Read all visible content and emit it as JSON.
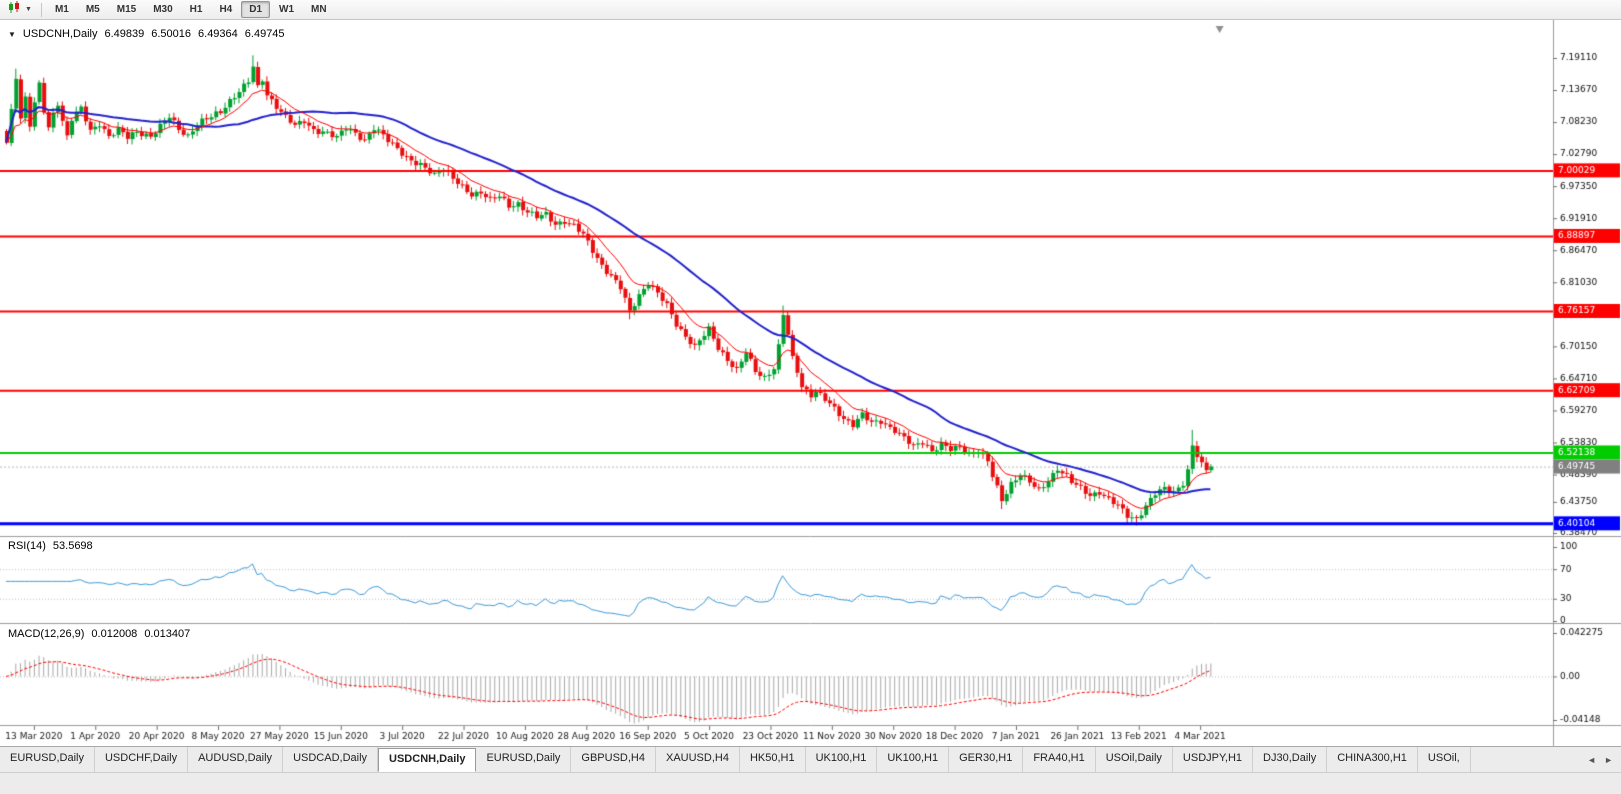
{
  "toolbar": {
    "timeframes": [
      "M1",
      "M5",
      "M15",
      "M30",
      "H1",
      "H4",
      "D1",
      "W1",
      "MN"
    ],
    "active_timeframe": "D1"
  },
  "chart": {
    "title": "USDCNH,Daily",
    "open": "6.49839",
    "high": "6.50016",
    "low": "6.49364",
    "close": "6.49745"
  },
  "rsi": {
    "name": "RSI(14)",
    "value": "53.5698"
  },
  "macd": {
    "name": "MACD(12,26,9)",
    "value_main": "0.012008",
    "value_signal": "0.013407"
  },
  "colors": {
    "bull": "#00A12F",
    "bear": "#E80E0E",
    "ma_fast": "#FF0000",
    "ma_slow": "#2222CC",
    "rsi_line": "#3E9BD8",
    "macd_hist": "#A9A9A9",
    "macd_signal": "#FF0000",
    "price_box": "#808080",
    "axis_text": "#111111",
    "level_dotted": "#C0C0C0"
  },
  "chart_data": {
    "type": "candlestick",
    "symbol": "USDCNH",
    "period": "Daily",
    "bars": 260,
    "last_ohlc": [
      6.49839,
      6.50016,
      6.49364,
      6.49745
    ],
    "price_axis_ticks": [
      "7.19110",
      "7.13670",
      "7.08230",
      "7.02790",
      "6.97350",
      "6.91910",
      "6.86470",
      "6.81030",
      "6.75590",
      "6.70150",
      "6.64710",
      "6.59270",
      "6.53830",
      "6.48390",
      "6.43750",
      "6.38470"
    ],
    "x_labels": [
      "13 Mar 2020",
      "1 Apr 2020",
      "20 Apr 2020",
      "8 May 2020",
      "27 May 2020",
      "15 Jun 2020",
      "3 Jul 2020",
      "22 Jul 2020",
      "10 Aug 2020",
      "28 Aug 2020",
      "16 Sep 2020",
      "5 Oct 2020",
      "23 Oct 2020",
      "11 Nov 2020",
      "30 Nov 2020",
      "18 Dec 2020",
      "7 Jan 2021",
      "26 Jan 2021",
      "13 Feb 2021",
      "4 Mar 2021"
    ],
    "hlines": [
      {
        "price": 7.00029,
        "label": "7.00029",
        "color": "#FF0000",
        "width": 2
      },
      {
        "price": 6.88897,
        "label": "6.88897",
        "color": "#FF0000",
        "width": 2
      },
      {
        "price": 6.76157,
        "label": "6.76157",
        "color": "#FF0000",
        "width": 2
      },
      {
        "price": 6.62709,
        "label": "6.62709",
        "color": "#FF0000",
        "width": 2
      },
      {
        "price": 6.52138,
        "label": "6.52138",
        "color": "#00CC00",
        "width": 2
      },
      {
        "price": 6.40104,
        "label": "6.40104",
        "color": "#0000FF",
        "width": 3
      }
    ],
    "current_price": 6.49745,
    "ma_fast_period": 10,
    "ma_slow_period": 34,
    "rsi": {
      "period": 14,
      "levels": [
        70,
        30
      ],
      "axis": [
        "100",
        "70",
        "30",
        "0"
      ],
      "last_value": 53.5698
    },
    "macd": {
      "fast": 12,
      "slow": 26,
      "signal": 9,
      "axis": [
        "0.042275",
        "0.00",
        "-0.04148"
      ],
      "last_main": 0.012008,
      "last_signal": 0.013407
    },
    "close_anchors": [
      [
        0,
        7.045
      ],
      [
        1,
        7.1
      ],
      [
        2,
        7.16
      ],
      [
        3,
        7.09
      ],
      [
        4,
        7.125
      ],
      [
        5,
        7.08
      ],
      [
        6,
        7.115
      ],
      [
        7,
        7.145
      ],
      [
        8,
        7.1
      ],
      [
        9,
        7.07
      ],
      [
        10,
        7.095
      ],
      [
        11,
        7.115
      ],
      [
        12,
        7.085
      ],
      [
        13,
        7.06
      ],
      [
        14,
        7.09
      ],
      [
        16,
        7.105
      ],
      [
        18,
        7.065
      ],
      [
        20,
        7.08
      ],
      [
        22,
        7.06
      ],
      [
        24,
        7.07
      ],
      [
        26,
        7.055
      ],
      [
        28,
        7.065
      ],
      [
        31,
        7.06
      ],
      [
        33,
        7.075
      ],
      [
        35,
        7.09
      ],
      [
        37,
        7.07
      ],
      [
        39,
        7.06
      ],
      [
        41,
        7.08
      ],
      [
        44,
        7.09
      ],
      [
        46,
        7.1
      ],
      [
        48,
        7.12
      ],
      [
        50,
        7.135
      ],
      [
        52,
        7.15
      ],
      [
        53,
        7.175
      ],
      [
        54,
        7.14
      ],
      [
        55,
        7.155
      ],
      [
        56,
        7.13
      ],
      [
        58,
        7.11
      ],
      [
        60,
        7.09
      ],
      [
        62,
        7.075
      ],
      [
        64,
        7.085
      ],
      [
        66,
        7.07
      ],
      [
        68,
        7.065
      ],
      [
        71,
        7.055
      ],
      [
        73,
        7.075
      ],
      [
        75,
        7.065
      ],
      [
        77,
        7.05
      ],
      [
        79,
        7.07
      ],
      [
        81,
        7.06
      ],
      [
        84,
        7.04
      ],
      [
        86,
        7.02
      ],
      [
        88,
        7.01
      ],
      [
        90,
        7.005
      ],
      [
        92,
        6.995
      ],
      [
        94,
        7.005
      ],
      [
        96,
        6.985
      ],
      [
        98,
        6.97
      ],
      [
        100,
        6.96
      ],
      [
        102,
        6.965
      ],
      [
        104,
        6.95
      ],
      [
        106,
        6.955
      ],
      [
        108,
        6.94
      ],
      [
        110,
        6.945
      ],
      [
        112,
        6.93
      ],
      [
        114,
        6.92
      ],
      [
        116,
        6.925
      ],
      [
        118,
        6.91
      ],
      [
        120,
        6.915
      ],
      [
        122,
        6.905
      ],
      [
        124,
        6.89
      ],
      [
        126,
        6.865
      ],
      [
        128,
        6.84
      ],
      [
        130,
        6.82
      ],
      [
        132,
        6.8
      ],
      [
        134,
        6.76
      ],
      [
        136,
        6.79
      ],
      [
        138,
        6.81
      ],
      [
        140,
        6.79
      ],
      [
        142,
        6.77
      ],
      [
        144,
        6.74
      ],
      [
        146,
        6.72
      ],
      [
        148,
        6.7
      ],
      [
        149,
        6.71
      ],
      [
        151,
        6.73
      ],
      [
        153,
        6.7
      ],
      [
        155,
        6.68
      ],
      [
        157,
        6.66
      ],
      [
        159,
        6.69
      ],
      [
        161,
        6.66
      ],
      [
        163,
        6.65
      ],
      [
        165,
        6.665
      ],
      [
        166,
        6.7
      ],
      [
        167,
        6.755
      ],
      [
        168,
        6.72
      ],
      [
        169,
        6.68
      ],
      [
        170,
        6.66
      ],
      [
        171,
        6.635
      ],
      [
        173,
        6.62
      ],
      [
        174,
        6.625
      ],
      [
        176,
        6.61
      ],
      [
        178,
        6.595
      ],
      [
        180,
        6.58
      ],
      [
        182,
        6.57
      ],
      [
        184,
        6.585
      ],
      [
        186,
        6.57
      ],
      [
        188,
        6.575
      ],
      [
        191,
        6.56
      ],
      [
        193,
        6.545
      ],
      [
        195,
        6.53
      ],
      [
        197,
        6.54
      ],
      [
        199,
        6.525
      ],
      [
        201,
        6.535
      ],
      [
        203,
        6.525
      ],
      [
        205,
        6.53
      ],
      [
        207,
        6.52
      ],
      [
        209,
        6.525
      ],
      [
        211,
        6.505
      ],
      [
        212,
        6.48
      ],
      [
        213,
        6.46
      ],
      [
        214,
        6.44
      ],
      [
        215,
        6.455
      ],
      [
        216,
        6.47
      ],
      [
        218,
        6.485
      ],
      [
        220,
        6.47
      ],
      [
        222,
        6.455
      ],
      [
        224,
        6.475
      ],
      [
        226,
        6.495
      ],
      [
        228,
        6.48
      ],
      [
        229,
        6.47
      ],
      [
        231,
        6.46
      ],
      [
        233,
        6.45
      ],
      [
        235,
        6.455
      ],
      [
        237,
        6.44
      ],
      [
        239,
        6.43
      ],
      [
        241,
        6.415
      ],
      [
        243,
        6.41
      ],
      [
        245,
        6.43
      ],
      [
        247,
        6.45
      ],
      [
        249,
        6.46
      ],
      [
        251,
        6.455
      ],
      [
        253,
        6.47
      ],
      [
        254,
        6.49
      ],
      [
        255,
        6.53
      ],
      [
        256,
        6.515
      ],
      [
        257,
        6.5
      ],
      [
        258,
        6.49
      ],
      [
        259,
        6.49745
      ]
    ],
    "high_spikes": [
      [
        2,
        0.012
      ],
      [
        53,
        0.014
      ],
      [
        167,
        0.01
      ],
      [
        255,
        0.02
      ]
    ],
    "low_spikes": [
      [
        134,
        0.006
      ],
      [
        214,
        0.01
      ],
      [
        243,
        0.007
      ]
    ]
  },
  "tabs": {
    "items": [
      "EURUSD,Daily",
      "USDCHF,Daily",
      "AUDUSD,Daily",
      "USDCAD,Daily",
      "USDCNH,Daily",
      "EURUSD,Daily",
      "GBPUSD,H4",
      "XAUUSD,H4",
      "HK50,H1",
      "UK100,H1",
      "UK100,H1",
      "GER30,H1",
      "FRA40,H1",
      "USOil,Daily",
      "USDJPY,H1",
      "DJ30,Daily",
      "CHINA300,H1",
      "USOil,"
    ],
    "active_index": 4,
    "scroll_left": "◄",
    "scroll_right": "►"
  }
}
